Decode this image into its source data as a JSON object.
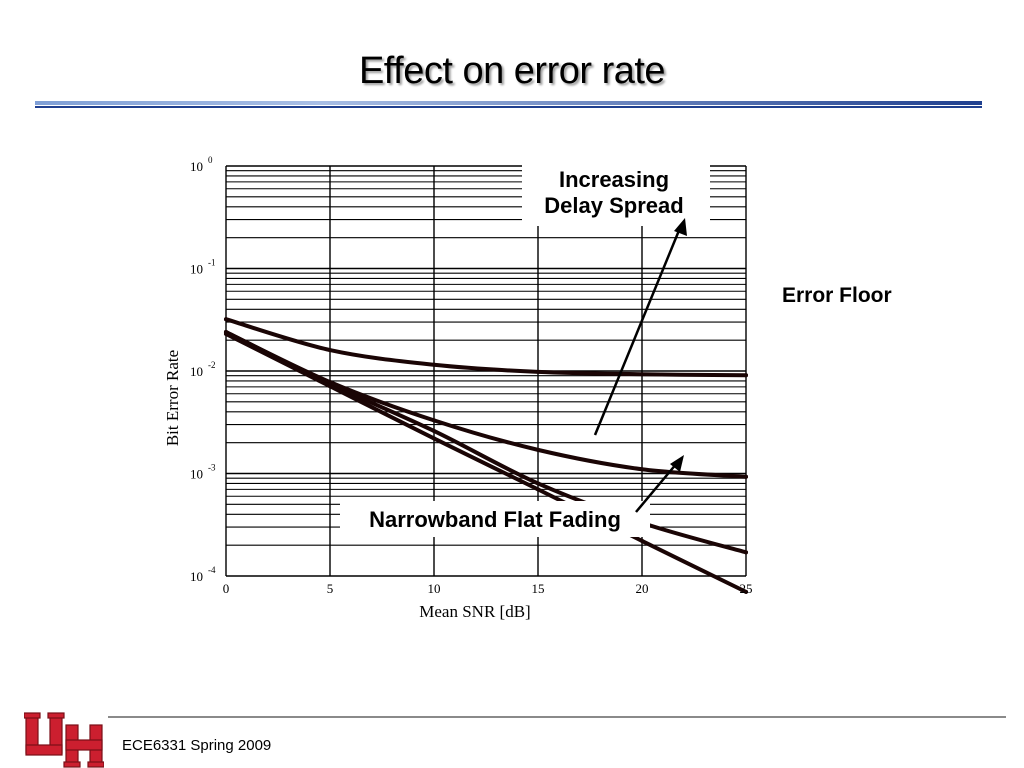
{
  "slide": {
    "title": "Effect on error rate",
    "footer": "ECE6331 Spring 2009"
  },
  "colors": {
    "title_rule_dark": "#1f3f8f",
    "title_rule_light": "#9db4de",
    "logo_red": "#cc1f2f",
    "curve": "#1a0505"
  },
  "logo": {
    "icon": "uh-interlocking-logo-icon"
  },
  "chart_data": {
    "type": "line",
    "xlabel": "Mean SNR [dB]",
    "ylabel": "Bit Error Rate",
    "x_ticks": [
      0,
      5,
      10,
      15,
      20,
      25
    ],
    "y_ticks": [
      {
        "base": "10",
        "exp": "0"
      },
      {
        "base": "10",
        "exp": "-1"
      },
      {
        "base": "10",
        "exp": "-2"
      },
      {
        "base": "10",
        "exp": "-3"
      },
      {
        "base": "10",
        "exp": "-4"
      }
    ],
    "xlim": [
      0,
      25
    ],
    "ylim": [
      0.0001,
      1
    ],
    "y_scale": "log",
    "grid": true,
    "series": [
      {
        "x": [
          0,
          5,
          10,
          15,
          20,
          25
        ],
        "values": [
          0.032,
          0.016,
          0.0115,
          0.0098,
          0.0093,
          0.0091
        ]
      },
      {
        "x": [
          0,
          5,
          10,
          15,
          20,
          25
        ],
        "values": [
          0.024,
          0.0078,
          0.0033,
          0.0017,
          0.0011,
          0.00093
        ]
      },
      {
        "x": [
          0,
          5,
          10,
          15,
          20,
          25
        ],
        "values": [
          0.024,
          0.0075,
          0.0026,
          0.0008,
          0.00033,
          0.00017
        ]
      },
      {
        "x": [
          0,
          5,
          10,
          15,
          20,
          25
        ],
        "values": [
          0.023,
          0.0071,
          0.0022,
          0.0007,
          0.00022,
          7e-05
        ]
      }
    ],
    "annotations": {
      "delay_spread": [
        "Increasing",
        "Delay Spread"
      ],
      "flat_fading": "Narrowband Flat Fading",
      "error_floor": "Error Floor"
    }
  }
}
